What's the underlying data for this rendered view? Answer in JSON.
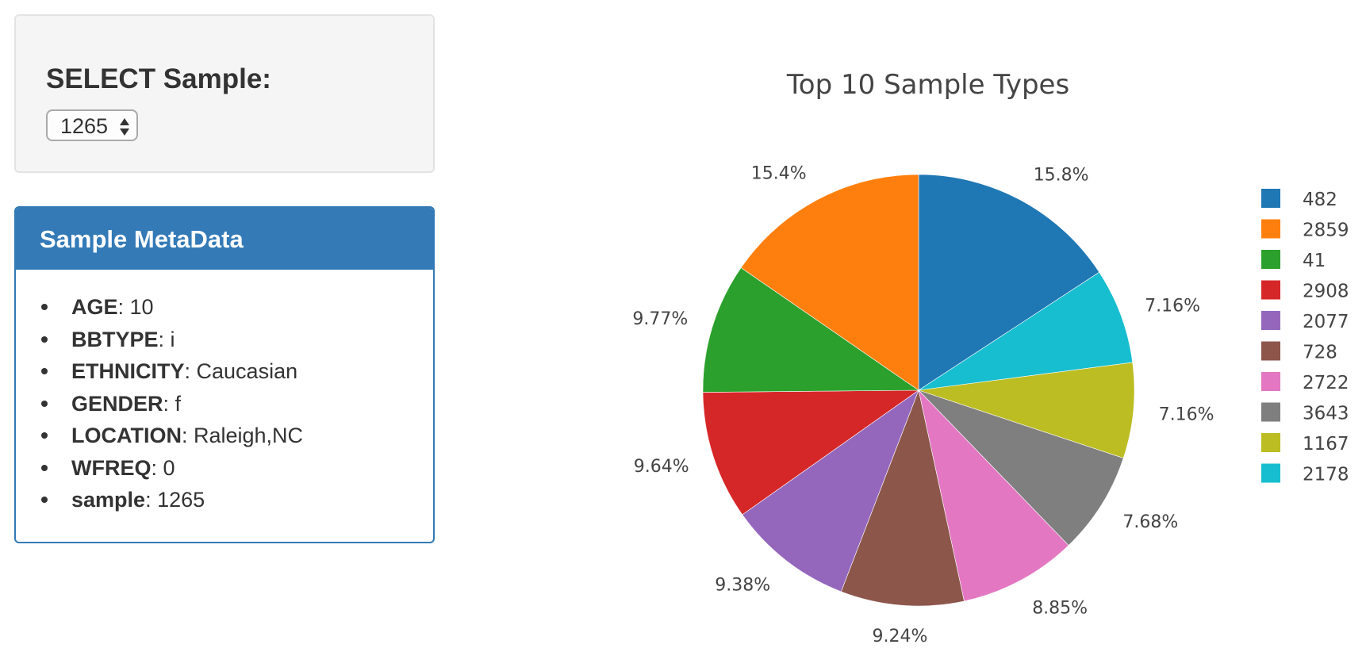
{
  "selector": {
    "label": "SELECT Sample:",
    "value": "1265"
  },
  "metadata": {
    "title": "Sample MetaData",
    "items": [
      {
        "key": "AGE",
        "sep": ": ",
        "value": "10"
      },
      {
        "key": "BBTYPE",
        "sep": ": ",
        "value": "i"
      },
      {
        "key": "ETHNICITY",
        "sep": ": ",
        "value": "Caucasian"
      },
      {
        "key": "GENDER",
        "sep": ": ",
        "value": "f"
      },
      {
        "key": "LOCATION",
        "sep": ": ",
        "value": "Raleigh,NC"
      },
      {
        "key": "WFREQ",
        "sep": ": ",
        "value": "0"
      },
      {
        "key": "sample",
        "sep": ": ",
        "value": "1265"
      }
    ]
  },
  "colors": {
    "panel_header": "#337ab7",
    "well_background": "#f5f5f5"
  },
  "chart_data": {
    "type": "pie",
    "title": "Top 10 Sample Types",
    "legend_position": "right",
    "slices": [
      {
        "label": "482",
        "percent_label": "15.8%",
        "value": 15.8,
        "color": "#1f77b4"
      },
      {
        "label": "2178",
        "percent_label": "7.16%",
        "value": 7.16,
        "color": "#17becf"
      },
      {
        "label": "1167",
        "percent_label": "7.16%",
        "value": 7.16,
        "color": "#bcbd22"
      },
      {
        "label": "3643",
        "percent_label": "7.68%",
        "value": 7.68,
        "color": "#7f7f7f"
      },
      {
        "label": "2722",
        "percent_label": "8.85%",
        "value": 8.85,
        "color": "#e377c2"
      },
      {
        "label": "728",
        "percent_label": "9.24%",
        "value": 9.24,
        "color": "#8c564b"
      },
      {
        "label": "2077",
        "percent_label": "9.38%",
        "value": 9.38,
        "color": "#9467bd"
      },
      {
        "label": "2908",
        "percent_label": "9.64%",
        "value": 9.64,
        "color": "#d62728"
      },
      {
        "label": "41",
        "percent_label": "9.77%",
        "value": 9.77,
        "color": "#2ca02c"
      },
      {
        "label": "2859",
        "percent_label": "15.4%",
        "value": 15.4,
        "color": "#ff7f0e"
      }
    ],
    "legend_order": [
      "482",
      "2859",
      "41",
      "2908",
      "2077",
      "728",
      "2722",
      "3643",
      "1167",
      "2178"
    ]
  }
}
